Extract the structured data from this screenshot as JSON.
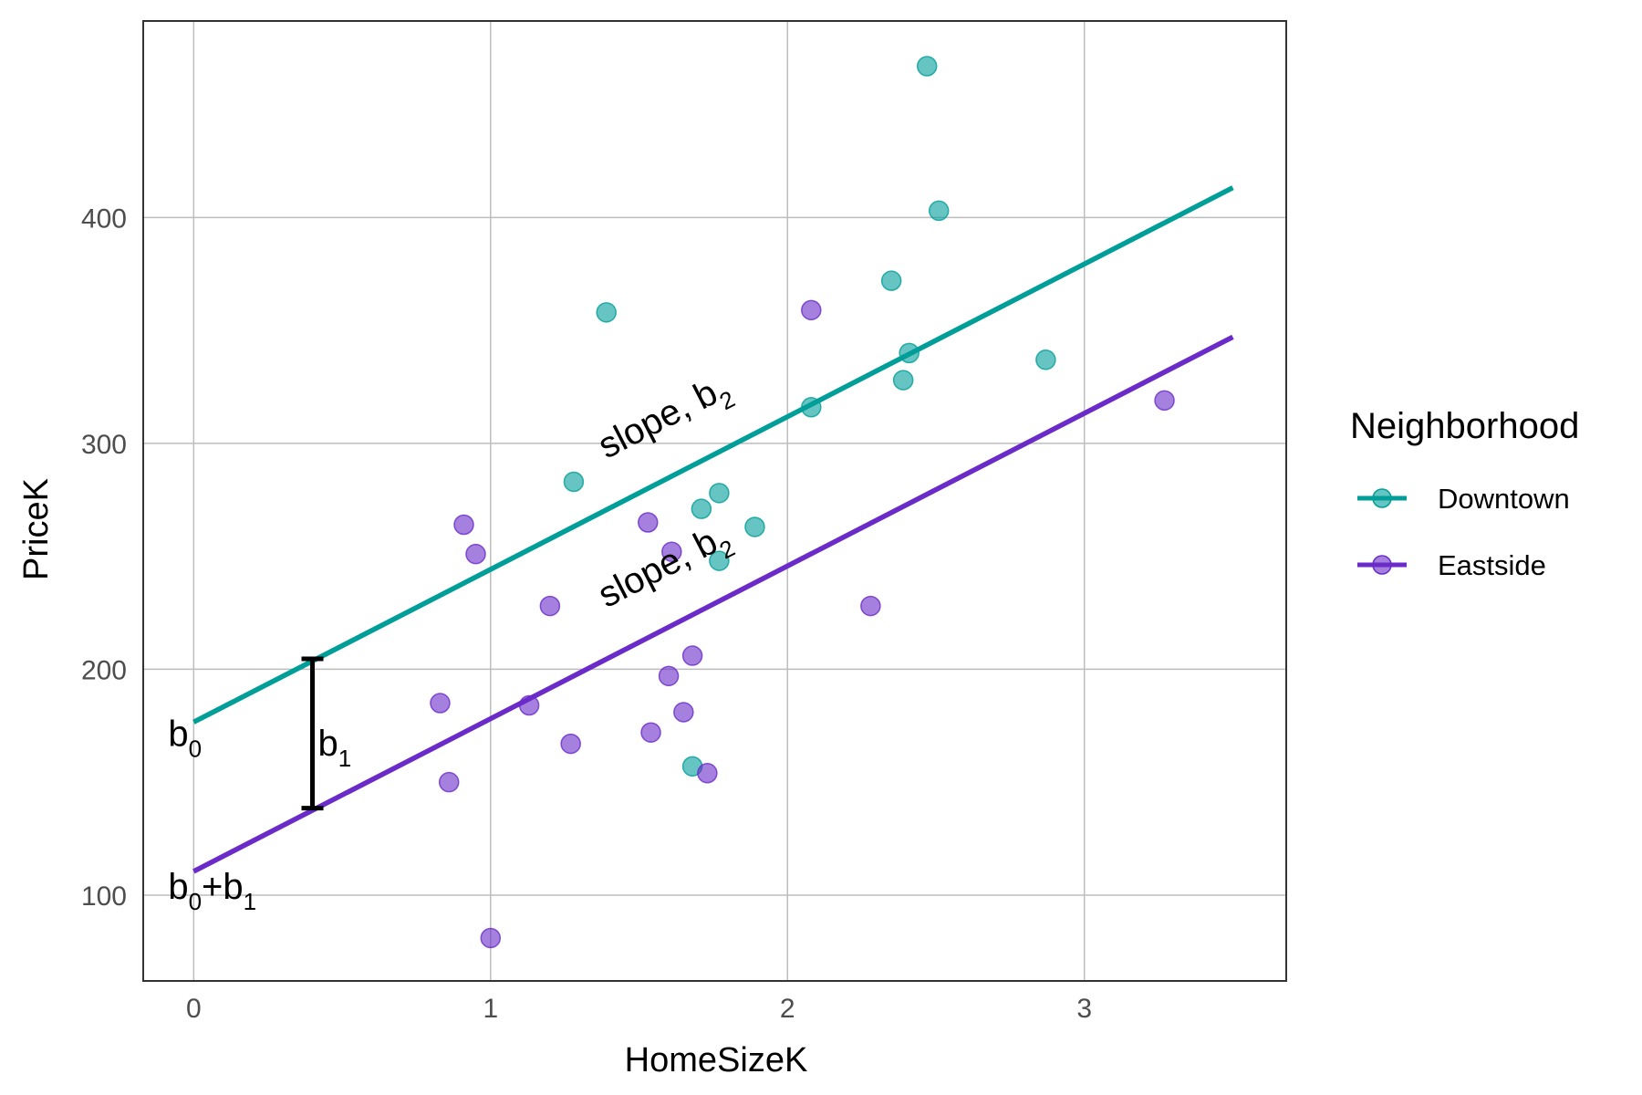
{
  "chart_data": {
    "type": "scatter",
    "xlabel": "HomeSizeK",
    "ylabel": "PriceK",
    "xlim": [
      -0.17,
      3.68
    ],
    "ylim": [
      62,
      487
    ],
    "xticks": [
      0,
      1,
      2,
      3
    ],
    "yticks": [
      100,
      200,
      300,
      400
    ],
    "x_tick_labels": [
      "0",
      "1",
      "2",
      "3"
    ],
    "y_tick_labels": [
      "100",
      "200",
      "300",
      "400"
    ],
    "grid": true,
    "legend": {
      "title": "Neighborhood",
      "position": "right",
      "entries": [
        "Downtown",
        "Eastside"
      ]
    },
    "series": [
      {
        "name": "Downtown",
        "color": "#009e99",
        "points": [
          {
            "x": 2.47,
            "y": 467
          },
          {
            "x": 2.51,
            "y": 403
          },
          {
            "x": 2.35,
            "y": 372
          },
          {
            "x": 1.39,
            "y": 358
          },
          {
            "x": 2.41,
            "y": 340
          },
          {
            "x": 2.87,
            "y": 337
          },
          {
            "x": 2.39,
            "y": 328
          },
          {
            "x": 2.08,
            "y": 316
          },
          {
            "x": 1.28,
            "y": 283
          },
          {
            "x": 1.77,
            "y": 278
          },
          {
            "x": 1.71,
            "y": 271
          },
          {
            "x": 1.89,
            "y": 263
          },
          {
            "x": 1.77,
            "y": 248
          },
          {
            "x": 1.68,
            "y": 157
          }
        ],
        "fit": {
          "intercept": 176.6,
          "slope": 67.6,
          "x_range": [
            0,
            3.5
          ]
        }
      },
      {
        "name": "Eastside",
        "color": "#6a2bc8",
        "points": [
          {
            "x": 2.08,
            "y": 359
          },
          {
            "x": 3.27,
            "y": 319
          },
          {
            "x": 0.91,
            "y": 264
          },
          {
            "x": 1.53,
            "y": 265
          },
          {
            "x": 0.95,
            "y": 251
          },
          {
            "x": 1.61,
            "y": 252
          },
          {
            "x": 1.2,
            "y": 228
          },
          {
            "x": 2.28,
            "y": 228
          },
          {
            "x": 1.68,
            "y": 206
          },
          {
            "x": 1.6,
            "y": 197
          },
          {
            "x": 0.83,
            "y": 185
          },
          {
            "x": 1.13,
            "y": 184
          },
          {
            "x": 1.65,
            "y": 181
          },
          {
            "x": 1.54,
            "y": 172
          },
          {
            "x": 1.27,
            "y": 167
          },
          {
            "x": 1.73,
            "y": 154
          },
          {
            "x": 0.86,
            "y": 150
          },
          {
            "x": 1.0,
            "y": 81
          }
        ],
        "fit": {
          "intercept": 110.5,
          "slope": 67.6,
          "x_range": [
            0,
            3.5
          ]
        }
      }
    ],
    "annotations": {
      "intercept_label": {
        "base": "b",
        "sub": "0"
      },
      "eastside_intercept_label": {
        "base1": "b",
        "sub1": "0",
        "plus": "+",
        "base2": "b",
        "sub2": "1"
      },
      "offset_label": {
        "base": "b",
        "sub": "1"
      },
      "offset_bracket": {
        "x": 0.4,
        "y_top": 204.6,
        "y_bottom": 138.5
      },
      "slope_label_downtown": {
        "text": "slope, b",
        "sub": "2",
        "x": 1.39,
        "y": 293
      },
      "slope_label_eastside": {
        "text": "slope, b",
        "sub": "2",
        "x": 1.39,
        "y": 227
      }
    }
  }
}
